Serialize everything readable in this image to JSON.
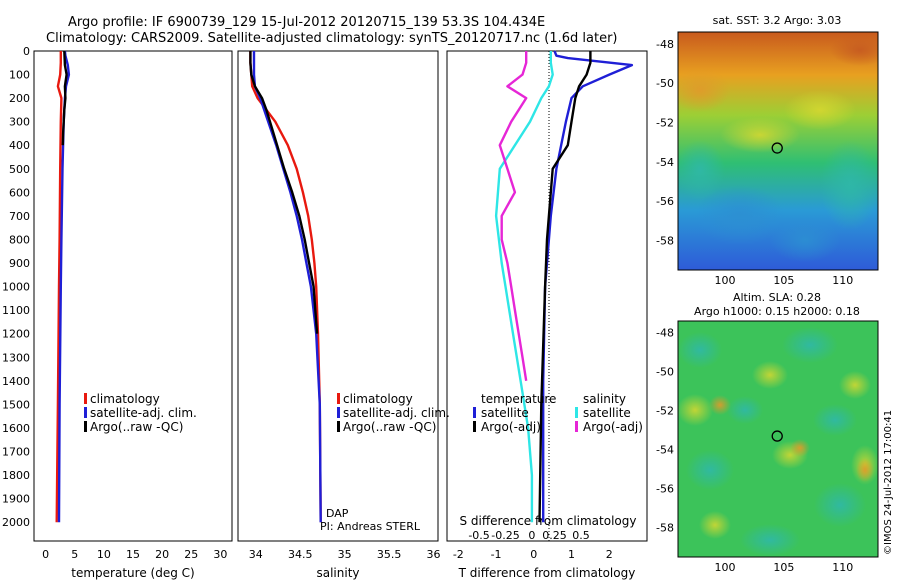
{
  "header": {
    "line1": "Argo profile: IF 6900739_129 15-Jul-2012 20120715_139 53.3S 104.434E",
    "line2": "Climatology: CARS2009. Satellite-adjusted climatology: synTS_20120717.nc (1.6d later)"
  },
  "colors": {
    "climatology": "#e8190f",
    "satellite": "#1f1fd6",
    "argo": "#000000",
    "sat_diff": "#2ee6e6",
    "argo_diff": "#e626d6"
  },
  "chart_data": [
    {
      "id": "temperature",
      "type": "line",
      "xlabel": "temperature (deg C)",
      "ylabel": "",
      "xlim": [
        -2,
        32
      ],
      "ylim": [
        2080,
        0
      ],
      "xticks": [
        "0",
        "5",
        "10",
        "15",
        "20",
        "25",
        "30"
      ],
      "xtick_values": [
        0,
        5,
        10,
        15,
        20,
        25,
        30
      ],
      "yticks": [
        "0",
        "100",
        "200",
        "300",
        "400",
        "500",
        "600",
        "700",
        "800",
        "900",
        "1000",
        "1100",
        "1200",
        "1300",
        "1400",
        "1500",
        "1600",
        "1700",
        "1800",
        "1900",
        "2000"
      ],
      "legend": [
        "climatology",
        "satellite-adj. clim.",
        "Argo(..raw -QC)"
      ],
      "series": [
        {
          "name": "climatology",
          "color": "#e8190f",
          "depth": [
            0,
            50,
            100,
            150,
            200,
            300,
            500,
            800,
            1000,
            1500,
            2000
          ],
          "values": [
            2.6,
            2.6,
            2.5,
            2.1,
            2.7,
            2.6,
            2.5,
            2.4,
            2.3,
            2.1,
            1.9
          ]
        },
        {
          "name": "satellite-adj. clim.",
          "color": "#1f1fd6",
          "depth": [
            0,
            20,
            60,
            100,
            150,
            200,
            300,
            500,
            800,
            1000,
            1500,
            2000
          ],
          "values": [
            3.3,
            3.4,
            3.8,
            4.0,
            3.5,
            3.3,
            3.1,
            2.9,
            2.7,
            2.6,
            2.4,
            2.3
          ]
        },
        {
          "name": "Argo(..raw -QC)",
          "color": "#000000",
          "depth": [
            0,
            60,
            100,
            150,
            200,
            250,
            300,
            350,
            400
          ],
          "values": [
            3.2,
            3.3,
            3.6,
            3.3,
            3.4,
            3.2,
            3.1,
            3.0,
            2.95
          ]
        }
      ]
    },
    {
      "id": "salinity",
      "type": "line",
      "xlabel": "salinity",
      "xlim": [
        33.8,
        36.05
      ],
      "ylim": [
        2080,
        0
      ],
      "xticks": [
        "34",
        "34.5",
        "35",
        "35.5",
        "36"
      ],
      "xtick_values": [
        34,
        34.5,
        35,
        35.5,
        36
      ],
      "legend": [
        "climatology",
        "satellite-adj. clim.",
        "Argo(..raw -QC)"
      ],
      "annotation": [
        "DAP",
        "PI: Andreas STERL"
      ],
      "series": [
        {
          "name": "climatology",
          "color": "#e8190f",
          "depth": [
            0,
            50,
            100,
            150,
            200,
            300,
            400,
            500,
            600,
            700,
            800,
            900,
            1000,
            1200,
            1500,
            2000
          ],
          "values": [
            33.94,
            33.94,
            33.95,
            33.96,
            34.02,
            34.22,
            34.36,
            34.46,
            34.53,
            34.59,
            34.63,
            34.66,
            34.68,
            34.7,
            34.72,
            34.73
          ]
        },
        {
          "name": "satellite-adj. clim.",
          "color": "#1f1fd6",
          "depth": [
            0,
            50,
            100,
            150,
            200,
            300,
            400,
            500,
            600,
            700,
            800,
            900,
            1000,
            1200,
            1500,
            2000
          ],
          "values": [
            33.98,
            33.98,
            33.98,
            33.99,
            34.05,
            34.14,
            34.23,
            34.31,
            34.39,
            34.46,
            34.52,
            34.57,
            34.62,
            34.68,
            34.72,
            34.73
          ]
        },
        {
          "name": "Argo(..raw -QC)",
          "color": "#000000",
          "depth": [
            0,
            50,
            100,
            150,
            200,
            250,
            300,
            400,
            500,
            600,
            700,
            800,
            900,
            1000,
            1100,
            1200
          ],
          "values": [
            33.94,
            33.94,
            33.95,
            33.99,
            34.07,
            34.12,
            34.16,
            34.24,
            34.32,
            34.41,
            34.49,
            34.55,
            34.6,
            34.65,
            34.67,
            34.69
          ]
        }
      ]
    },
    {
      "id": "difference",
      "type": "line",
      "xlabel": "T difference from climatology",
      "xlabel_top": "S difference from climatology",
      "xlim": [
        -2.3,
        3.0
      ],
      "ylim": [
        2080,
        0
      ],
      "xticks": [
        "-2",
        "-1",
        "0",
        "1",
        "2"
      ],
      "xtick_values": [
        -2,
        -1,
        0,
        1,
        2
      ],
      "xticks_top": [
        "-0.5",
        "-0.25",
        "0",
        "0.25",
        "0.5"
      ],
      "xtick_top_values": [
        -1.45,
        -0.75,
        -0.05,
        0.55,
        1.25
      ],
      "legend_titles": [
        "temperature",
        "salinity"
      ],
      "legend": [
        "satellite",
        "Argo(-adj)",
        "satellite",
        "Argo(-adj)"
      ],
      "series": [
        {
          "name": "satellite",
          "color": "#1f1fd6",
          "depth": [
            0,
            20,
            30,
            60,
            100,
            150,
            200,
            300,
            500,
            700,
            1000,
            1400,
            2000
          ],
          "values": [
            0.55,
            0.6,
            0.9,
            2.6,
            2.0,
            1.3,
            1.0,
            0.85,
            0.6,
            0.45,
            0.3,
            0.25,
            0.25
          ]
        },
        {
          "name": "Argo(-adj)",
          "color": "#000000",
          "depth": [
            0,
            50,
            100,
            150,
            200,
            300,
            400,
            500,
            600,
            800,
            1000,
            1500,
            2000
          ],
          "values": [
            1.5,
            1.5,
            1.4,
            1.2,
            1.1,
            1.0,
            0.9,
            0.5,
            0.45,
            0.35,
            0.3,
            0.2,
            0.15
          ]
        },
        {
          "name": "satellite",
          "color": "#2ee6e6",
          "depth": [
            0,
            50,
            100,
            150,
            200,
            300,
            500,
            700,
            900,
            1000,
            1200,
            1400,
            1600,
            1800,
            2000
          ],
          "values": [
            0.45,
            0.45,
            0.5,
            0.4,
            0.2,
            -0.1,
            -0.9,
            -1.0,
            -0.85,
            -0.75,
            -0.55,
            -0.35,
            -0.15,
            -0.05,
            -0.05
          ]
        },
        {
          "name": "Argo(-adj)",
          "color": "#e626d6",
          "depth": [
            0,
            50,
            100,
            150,
            200,
            300,
            400,
            500,
            600,
            700,
            800,
            900,
            1000,
            1100,
            1200,
            1300,
            1400
          ],
          "values": [
            -0.2,
            -0.2,
            -0.3,
            -0.7,
            -0.2,
            -0.6,
            -0.9,
            -0.7,
            -0.5,
            -0.85,
            -0.85,
            -0.7,
            -0.6,
            -0.5,
            -0.4,
            -0.3,
            -0.2
          ]
        }
      ]
    },
    {
      "id": "sst-map",
      "type": "heatmap",
      "title": "sat. SST: 3.2 Argo: 3.03",
      "xticks": [
        "100",
        "105",
        "110"
      ],
      "yticks": [
        "-48",
        "-50",
        "-52",
        "-54",
        "-56",
        "-58"
      ],
      "xlim": [
        96,
        113
      ],
      "ylim": [
        -59.5,
        -47.4
      ],
      "marker": {
        "lon": 104.434,
        "lat": -53.3
      }
    },
    {
      "id": "sla-map",
      "type": "heatmap",
      "title": "Altim. SLA: 0.28",
      "subtitle": "Argo h1000: 0.15 h2000: 0.18",
      "xticks": [
        "100",
        "105",
        "110"
      ],
      "yticks": [
        "-48",
        "-50",
        "-52",
        "-54",
        "-56",
        "-58"
      ],
      "xlim": [
        96,
        113
      ],
      "ylim": [
        -59.5,
        -47.4
      ],
      "marker": {
        "lon": 104.434,
        "lat": -53.3
      }
    }
  ],
  "footer": {
    "stamp": "©IMOS 24-Jul-2012 17:00:41"
  }
}
